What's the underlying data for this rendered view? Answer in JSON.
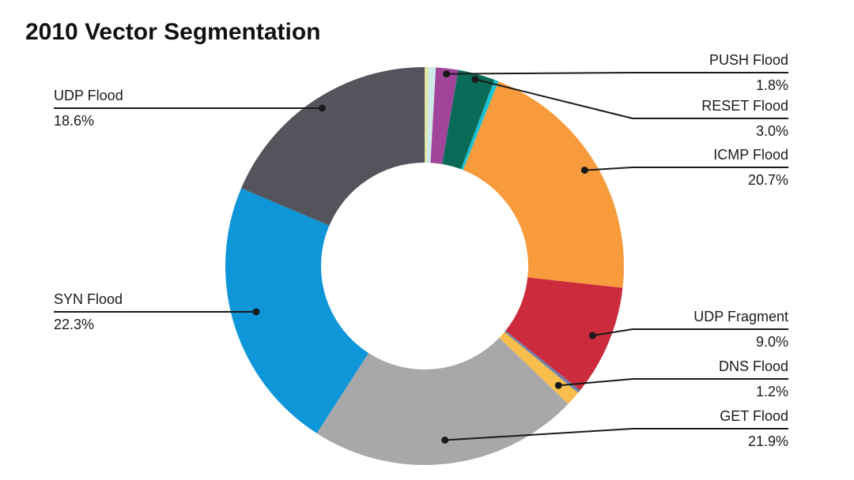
{
  "chart_data": {
    "type": "pie",
    "subtype": "donut",
    "title": "2010 Vector Segmentation",
    "legend_position": "callout-labels",
    "text_color": "#1a1a1a",
    "line_color": "#1a1a1a",
    "background_color": "#ffffff",
    "slices": [
      {
        "id": "other-1",
        "label": "",
        "pct_label": "",
        "value": 0.3,
        "color": "#E3E5A0"
      },
      {
        "id": "other-2",
        "label": "",
        "pct_label": "",
        "value": 0.6,
        "color": "#D0EAEA"
      },
      {
        "id": "push-flood",
        "label": "PUSH Flood",
        "pct_label": "1.8%",
        "value": 1.8,
        "color": "#A3449B"
      },
      {
        "id": "reset-flood",
        "label": "RESET Flood",
        "pct_label": "3.0%",
        "value": 3.0,
        "color": "#0B6B59"
      },
      {
        "id": "other-3",
        "label": "",
        "pct_label": "",
        "value": 0.35,
        "color": "#18C2D2"
      },
      {
        "id": "icmp-flood",
        "label": "ICMP Flood",
        "pct_label": "20.7%",
        "value": 20.7,
        "color": "#F89B3C"
      },
      {
        "id": "udp-fragment",
        "label": "UDP Fragment",
        "pct_label": "9.0%",
        "value": 9.0,
        "color": "#CB2B3C"
      },
      {
        "id": "other-4",
        "label": "",
        "pct_label": "",
        "value": 0.25,
        "color": "#6C83AE"
      },
      {
        "id": "dns-flood",
        "label": "DNS Flood",
        "pct_label": "1.2%",
        "value": 1.2,
        "color": "#F9BE4C"
      },
      {
        "id": "get-flood",
        "label": "GET Flood",
        "pct_label": "21.9%",
        "value": 21.9,
        "color": "#A8A8AA"
      },
      {
        "id": "syn-flood",
        "label": "SYN Flood",
        "pct_label": "22.3%",
        "value": 22.3,
        "color": "#0E96D8"
      },
      {
        "id": "udp-flood",
        "label": "UDP Flood",
        "pct_label": "18.6%",
        "value": 18.6,
        "color": "#54555C"
      }
    ]
  }
}
